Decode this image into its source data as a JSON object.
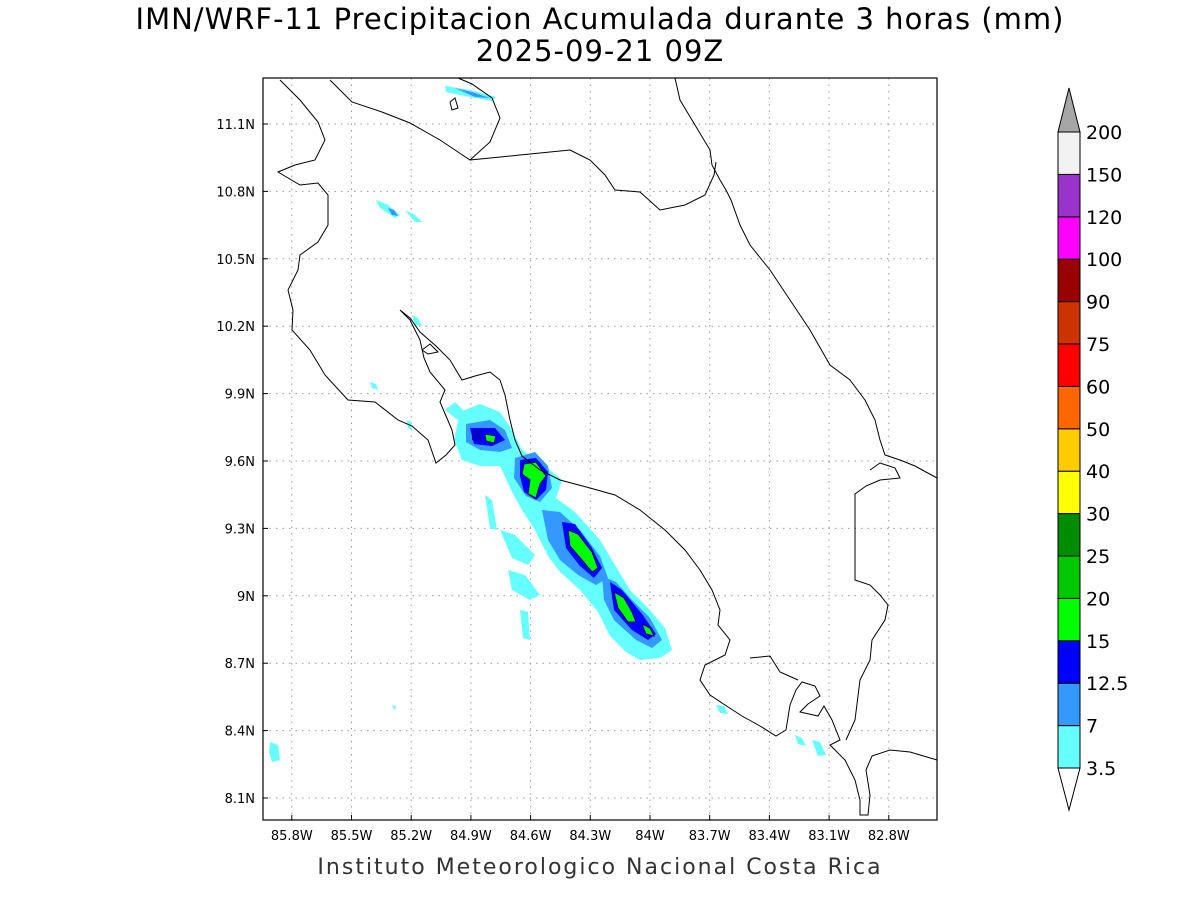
{
  "title": {
    "line1": "IMN/WRF-11 Precipitacion Acumulada durante 3 horas (mm)",
    "line2": "2025-09-21 09Z"
  },
  "footer": "Instituto Meteorologico Nacional Costa Rica",
  "map": {
    "lon_range_w": [
      85.95,
      82.56
    ],
    "lat_range_n": [
      8.0,
      11.3
    ],
    "lon_ticks": [
      {
        "label": "85.8W",
        "value": 85.8
      },
      {
        "label": "85.5W",
        "value": 85.5
      },
      {
        "label": "85.2W",
        "value": 85.2
      },
      {
        "label": "84.9W",
        "value": 84.9
      },
      {
        "label": "84.6W",
        "value": 84.6
      },
      {
        "label": "84.3W",
        "value": 84.3
      },
      {
        "label": "84W",
        "value": 84.0
      },
      {
        "label": "83.7W",
        "value": 83.7
      },
      {
        "label": "83.4W",
        "value": 83.4
      },
      {
        "label": "83.1W",
        "value": 83.1
      },
      {
        "label": "82.8W",
        "value": 82.8
      }
    ],
    "lat_ticks": [
      {
        "label": "11.1N",
        "value": 11.1
      },
      {
        "label": "10.8N",
        "value": 10.8
      },
      {
        "label": "10.5N",
        "value": 10.5
      },
      {
        "label": "10.2N",
        "value": 10.2
      },
      {
        "label": "9.9N",
        "value": 9.9
      },
      {
        "label": "9.6N",
        "value": 9.6
      },
      {
        "label": "9.3N",
        "value": 9.3
      },
      {
        "label": "9N",
        "value": 9.0
      },
      {
        "label": "8.7N",
        "value": 8.7
      },
      {
        "label": "8.4N",
        "value": 8.4
      },
      {
        "label": "8.1N",
        "value": 8.1
      }
    ]
  },
  "colorbar": {
    "labels": [
      "3.5",
      "7",
      "12.5",
      "15",
      "20",
      "25",
      "30",
      "40",
      "50",
      "60",
      "75",
      "90",
      "100",
      "120",
      "150",
      "200"
    ],
    "colors": [
      "#66ffff",
      "#3399ff",
      "#0000ff",
      "#00ff00",
      "#00c800",
      "#008c00",
      "#ffff00",
      "#ffcc00",
      "#ff6600",
      "#ff0000",
      "#cc3300",
      "#990000",
      "#ff00ff",
      "#9933cc",
      "#f2f2f2"
    ],
    "over_color": "#a6a6a6",
    "under_color": "#ffffff"
  }
}
